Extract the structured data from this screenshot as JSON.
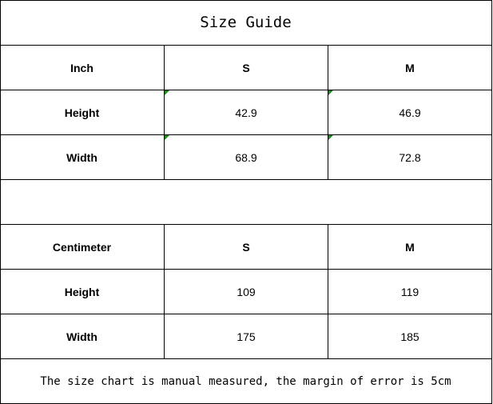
{
  "title": "Size Guide",
  "inch": {
    "header": [
      "Inch",
      "S",
      "M"
    ],
    "rows": [
      [
        "Height",
        "42.9",
        "46.9"
      ],
      [
        "Width",
        "68.9",
        "72.8"
      ]
    ]
  },
  "cm": {
    "header": [
      "Centimeter",
      "S",
      "M"
    ],
    "rows": [
      [
        "Height",
        "109",
        "119"
      ],
      [
        "Width",
        "175",
        "185"
      ]
    ]
  },
  "note": "The size chart is manual measured, the margin of error is 5cm",
  "colors": {
    "border": "#000000",
    "text_indicator": "#1a8a1a"
  }
}
